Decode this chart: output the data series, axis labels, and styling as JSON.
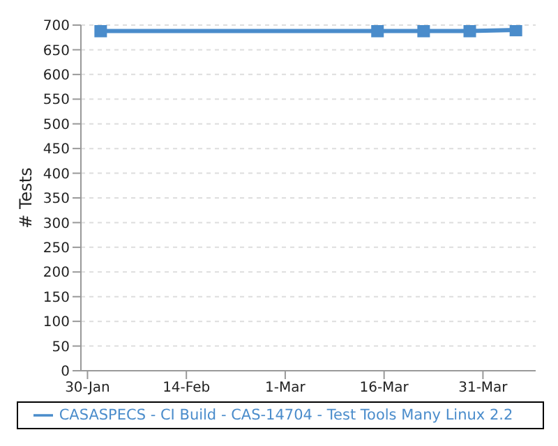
{
  "chart_data": {
    "type": "line",
    "ylabel": "# Tests",
    "x": [
      "--02-01",
      "--03-15",
      "--03-22",
      "--03-29",
      "--04-05"
    ],
    "series": [
      {
        "name": "CASASPECS - CI Build - CAS-14704 - Test Tools Many Linux 2.2",
        "color": "#4a8ccb",
        "values": [
          688,
          688,
          688,
          688,
          690
        ]
      }
    ],
    "xlim": [
      "--01-29",
      "--04-08"
    ],
    "xticks": [
      {
        "value": "--01-30",
        "label": "30-Jan"
      },
      {
        "value": "--02-14",
        "label": "14-Feb"
      },
      {
        "value": "--03-01",
        "label": "1-Mar"
      },
      {
        "value": "--03-16",
        "label": "16-Mar"
      },
      {
        "value": "--03-31",
        "label": "31-Mar"
      }
    ],
    "ylim": [
      0,
      700
    ],
    "yticks": [
      0,
      50,
      100,
      150,
      200,
      250,
      300,
      350,
      400,
      450,
      500,
      550,
      600,
      650,
      700
    ],
    "grid": "y",
    "legend": "bottom",
    "marker": "square",
    "line_style": "solid"
  }
}
